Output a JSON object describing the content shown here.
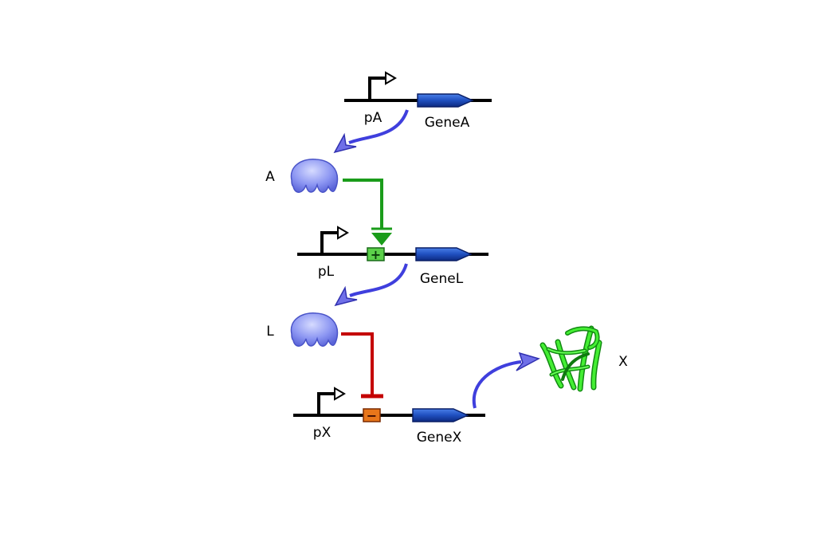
{
  "constructs": [
    {
      "promoter_label": "pA",
      "gene_label": "GeneA",
      "operator": "none"
    },
    {
      "promoter_label": "pL",
      "gene_label": "GeneL",
      "operator": "activator"
    },
    {
      "promoter_label": "pX",
      "gene_label": "GeneX",
      "operator": "repressor"
    }
  ],
  "proteins": [
    {
      "label": "A",
      "icon": "protein-blob-icon"
    },
    {
      "label": "L",
      "icon": "protein-blob-icon"
    }
  ],
  "output": {
    "label": "X",
    "icon": "green-protein-ribbon-icon"
  },
  "operator_symbols": {
    "activator": "+",
    "repressor": "−"
  },
  "colors": {
    "dna": "#000000",
    "cds": "#1f4fbf",
    "expression_arrow": "#3f3fdd",
    "protein": "#8c96f2",
    "activation": "#1a9c1a",
    "repression": "#c40000",
    "activator_box": "#5cd04a",
    "repressor_box": "#e8761a",
    "output_protein": "#33dd22"
  }
}
